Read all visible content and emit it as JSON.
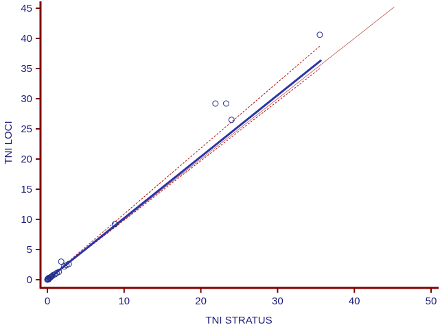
{
  "chart_data": {
    "type": "scatter",
    "xlabel": "TNI STRATUS",
    "ylabel": "TNI LOCI",
    "xlim": [
      0,
      50
    ],
    "ylim": [
      0,
      45
    ],
    "x_ticks": [
      0,
      10,
      20,
      30,
      40,
      50
    ],
    "y_ticks": [
      0,
      5,
      10,
      15,
      20,
      25,
      30,
      35,
      40,
      45
    ],
    "grid": false,
    "colors": {
      "axis": "#800000",
      "text": "#1a1a7a",
      "points": "#1f2a8a",
      "regression": "#2b35a8",
      "confidence": "#b01010",
      "identity": "#c05050"
    },
    "points": [
      {
        "x": 0.0,
        "y": 0.0
      },
      {
        "x": 0.05,
        "y": 0.1
      },
      {
        "x": 0.1,
        "y": 0.2
      },
      {
        "x": 0.15,
        "y": 0.05
      },
      {
        "x": 0.2,
        "y": 0.3
      },
      {
        "x": 0.3,
        "y": 0.25
      },
      {
        "x": 0.4,
        "y": 0.4
      },
      {
        "x": 0.5,
        "y": 0.5
      },
      {
        "x": 0.6,
        "y": 0.6
      },
      {
        "x": 0.8,
        "y": 0.8
      },
      {
        "x": 1.0,
        "y": 0.9
      },
      {
        "x": 1.2,
        "y": 1.1
      },
      {
        "x": 1.5,
        "y": 1.3
      },
      {
        "x": 1.8,
        "y": 3.0
      },
      {
        "x": 2.2,
        "y": 2.2
      },
      {
        "x": 2.5,
        "y": 2.4
      },
      {
        "x": 2.8,
        "y": 2.6
      },
      {
        "x": 8.8,
        "y": 9.2
      },
      {
        "x": 21.9,
        "y": 29.2
      },
      {
        "x": 23.3,
        "y": 29.2
      },
      {
        "x": 24.0,
        "y": 26.5
      },
      {
        "x": 35.5,
        "y": 40.6
      }
    ],
    "regression_line": {
      "x": [
        0,
        35.7
      ],
      "y": [
        0.0,
        36.4
      ]
    },
    "confidence_upper": {
      "x": [
        0,
        35.5
      ],
      "y": [
        0.0,
        38.7
      ]
    },
    "confidence_lower": {
      "x": [
        0,
        35.5
      ],
      "y": [
        0.0,
        35.0
      ]
    },
    "identity_line": {
      "x": [
        0,
        45.2
      ],
      "y": [
        0,
        45.2
      ]
    }
  }
}
